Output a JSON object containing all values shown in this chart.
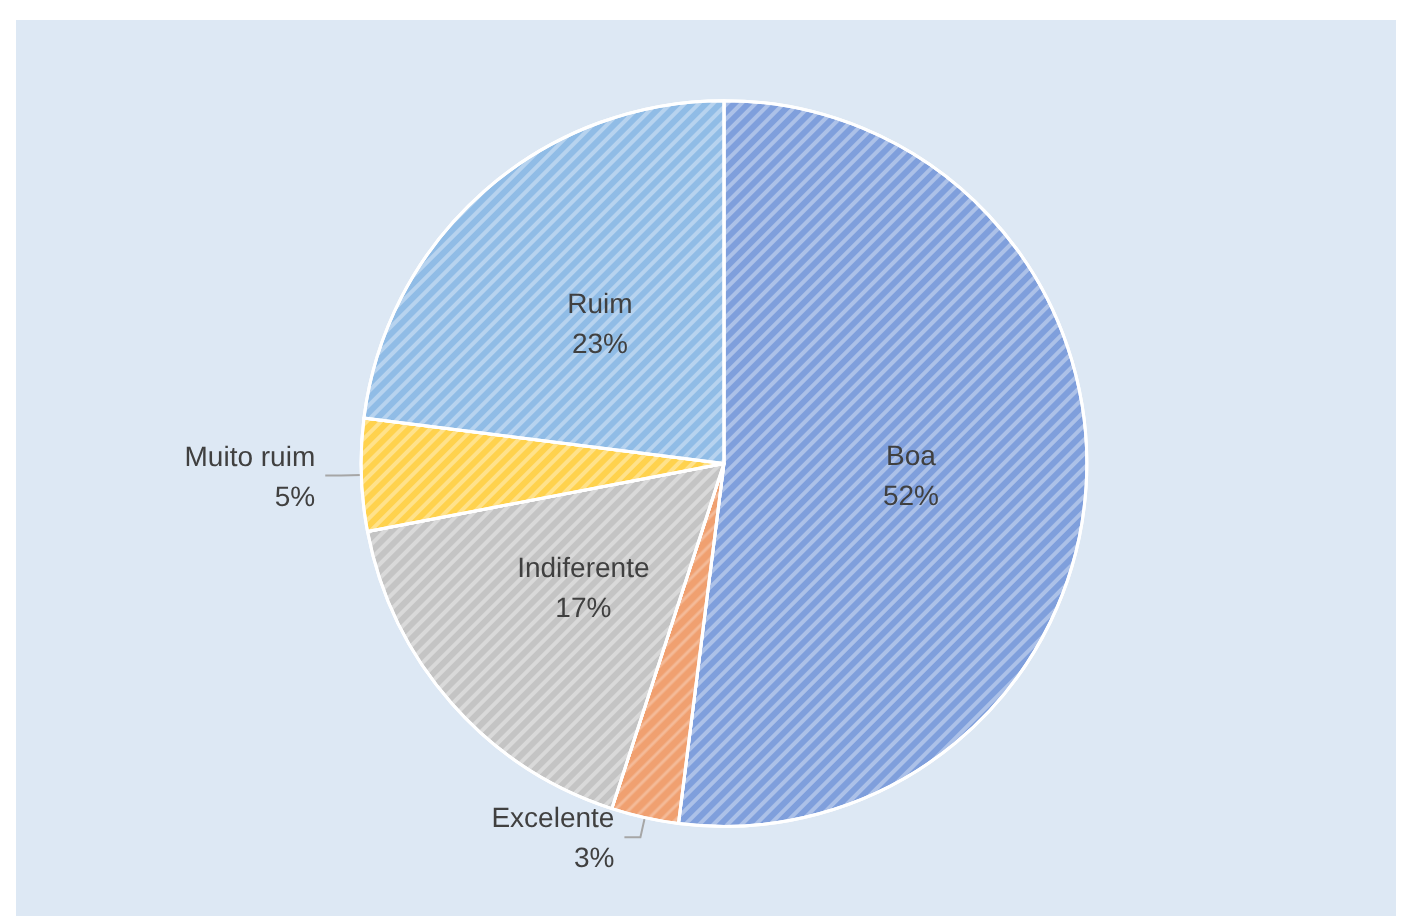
{
  "chart_data": {
    "type": "pie",
    "categories": [
      "Boa",
      "Excelente",
      "Indiferente",
      "Muito ruim",
      "Ruim"
    ],
    "values": [
      52,
      3,
      17,
      5,
      23
    ],
    "value_labels": [
      "52%",
      "3%",
      "17%",
      "5%",
      "23%"
    ],
    "colors": [
      "#7f9fdc",
      "#f0a070",
      "#c4c4c4",
      "#ffd24d",
      "#90bce6"
    ],
    "legend": false
  }
}
